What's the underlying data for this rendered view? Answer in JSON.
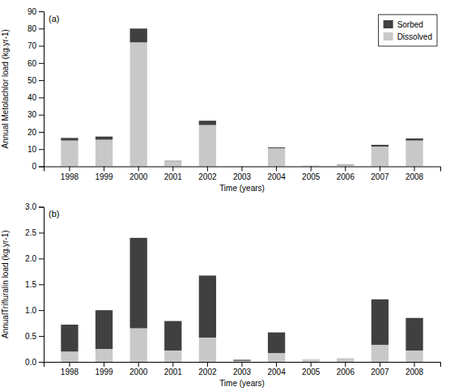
{
  "chart_data": [
    {
      "type": "bar",
      "stacked": true,
      "title": "(a)",
      "xlabel": "Time (years)",
      "ylabel": "Annual Metolachlor load (kg.yr-1)",
      "categories": [
        "1998",
        "1999",
        "2000",
        "2001",
        "2002",
        "2003",
        "2004",
        "2005",
        "2006",
        "2007",
        "2008"
      ],
      "series": [
        {
          "name": "Dissolved",
          "color": "#c8c8c8",
          "values": [
            15.0,
            15.5,
            72.0,
            3.0,
            24.0,
            0.0,
            10.5,
            0.3,
            0.8,
            11.5,
            15.0
          ]
        },
        {
          "name": "Sorbed",
          "color": "#404040",
          "values": [
            1.5,
            1.8,
            8.0,
            0.2,
            2.5,
            0.0,
            0.5,
            0.05,
            0.2,
            1.0,
            1.2
          ]
        }
      ],
      "ylim": [
        0,
        90
      ],
      "yticks": [
        0,
        10,
        20,
        30,
        40,
        50,
        60,
        70,
        80,
        90
      ],
      "legend": "upper right"
    },
    {
      "type": "bar",
      "stacked": true,
      "title": "(b)",
      "xlabel": "Time (years)",
      "ylabel": "AnnualTrifluralin load (kg.yr-1)",
      "categories": [
        "1998",
        "1999",
        "2000",
        "2001",
        "2002",
        "2003",
        "2004",
        "2005",
        "2006",
        "2007",
        "2008"
      ],
      "series": [
        {
          "name": "Dissolved",
          "color": "#c8c8c8",
          "values": [
            0.2,
            0.25,
            0.65,
            0.22,
            0.47,
            0.02,
            0.17,
            0.05,
            0.07,
            0.33,
            0.22
          ]
        },
        {
          "name": "Sorbed",
          "color": "#404040",
          "values": [
            0.52,
            0.75,
            1.75,
            0.57,
            1.2,
            0.02,
            0.4,
            0.0,
            0.0,
            0.88,
            0.63
          ]
        }
      ],
      "ylim": [
        0,
        3.0
      ],
      "yticks": [
        {
          "value": 0,
          "label": "0.0"
        },
        0.5,
        {
          "value": 1,
          "label": "1.0"
        },
        1.5,
        {
          "value": 2,
          "label": "2.0"
        },
        2.5,
        {
          "value": 3,
          "label": "3.0"
        }
      ]
    }
  ]
}
